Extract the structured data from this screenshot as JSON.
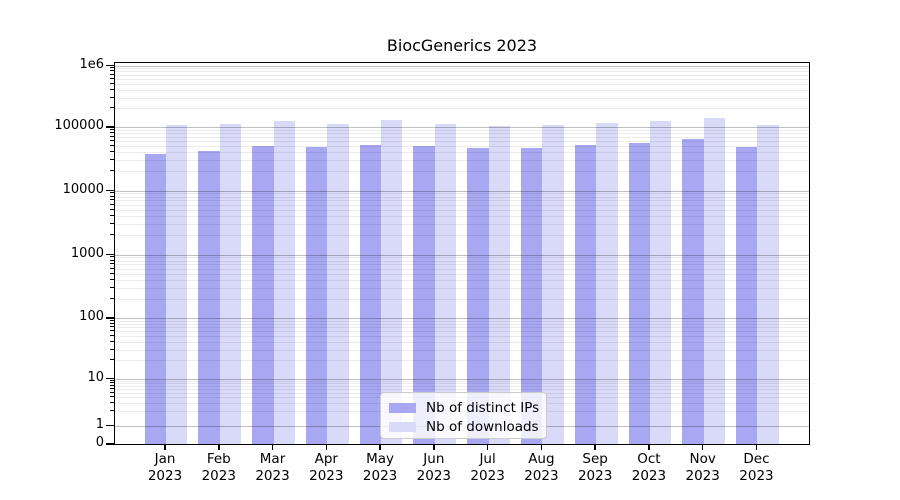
{
  "chart_data": {
    "type": "bar",
    "title": "BiocGenerics 2023",
    "categories": [
      "Jan",
      "Feb",
      "Mar",
      "Apr",
      "May",
      "Jun",
      "Jul",
      "Aug",
      "Sep",
      "Oct",
      "Nov",
      "Dec"
    ],
    "year_label": "2023",
    "series": [
      {
        "name": "Nb of distinct IPs",
        "color": "#a8a8f2",
        "values": [
          37500,
          42000,
          50500,
          48500,
          53000,
          50000,
          47000,
          47500,
          52000,
          55000,
          64000,
          48500
        ]
      },
      {
        "name": "Nb of downloads",
        "color": "#d9d9f8",
        "values": [
          108000,
          110000,
          126000,
          113000,
          128000,
          112000,
          105000,
          106000,
          116000,
          126000,
          140000,
          106000
        ]
      }
    ],
    "yscale": "symlog",
    "ylim": [
      0,
      1000000
    ],
    "yticks": [
      {
        "value": 0,
        "label": "0"
      },
      {
        "value": 1,
        "label": "1"
      },
      {
        "value": 10,
        "label": "10"
      },
      {
        "value": 100,
        "label": "100"
      },
      {
        "value": 1000,
        "label": "1000"
      },
      {
        "value": 10000,
        "label": "10000"
      },
      {
        "value": 100000,
        "label": "100000"
      },
      {
        "value": 1000000,
        "label": "1e6"
      }
    ],
    "grid": true,
    "legend_position": "lower center"
  }
}
